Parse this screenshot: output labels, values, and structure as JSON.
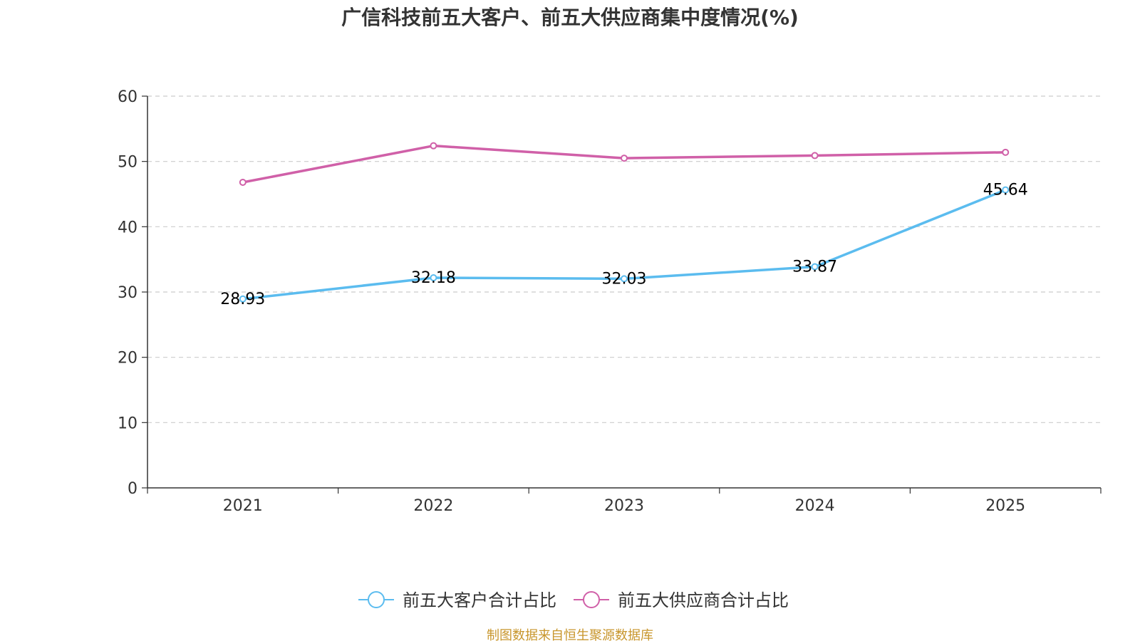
{
  "chart_data": {
    "type": "line",
    "title": "广信科技前五大客户、前五大供应商集中度情况(%)",
    "categories": [
      "2021",
      "2022",
      "2023",
      "2024",
      "2025"
    ],
    "y_ticks": [
      "0",
      "10",
      "20",
      "30",
      "40",
      "50",
      "60"
    ],
    "ylim": [
      0,
      60
    ],
    "grid": true,
    "legend_position": "bottom-center",
    "series": [
      {
        "name": "前五大客户合计占比",
        "color": "#5bbcef",
        "values": [
          28.93,
          32.18,
          32.03,
          33.87,
          45.64
        ],
        "labels": [
          "28.93",
          "32.18",
          "32.03",
          "33.87",
          "45.64"
        ],
        "show_labels": true
      },
      {
        "name": "前五大供应商合计占比",
        "color": "#d060a8",
        "values": [
          46.8,
          52.4,
          50.5,
          50.9,
          51.4
        ],
        "show_labels": false
      }
    ],
    "source": "制图数据来自恒生聚源数据库",
    "source_color": "#c8962c"
  }
}
